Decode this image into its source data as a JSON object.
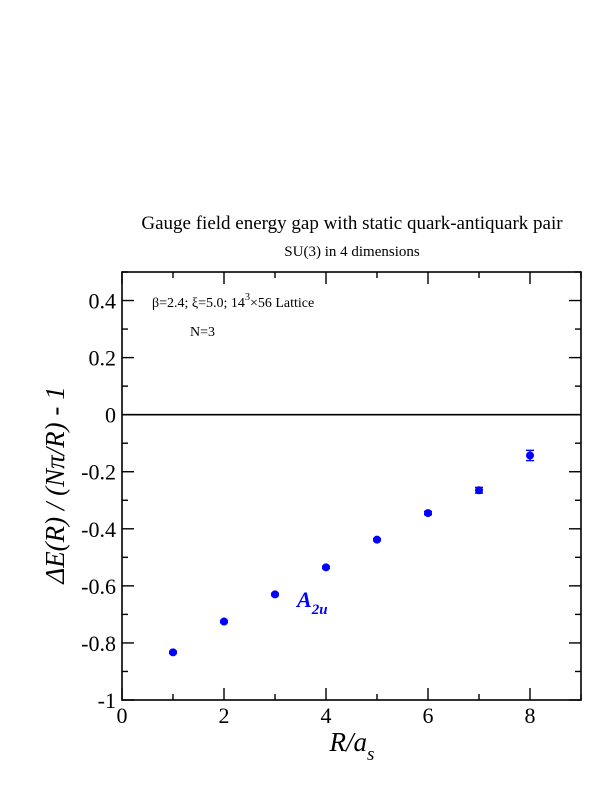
{
  "chart_data": {
    "type": "scatter",
    "title": "Gauge field energy gap with static quark-antiquark pair",
    "subtitle": "SU(3) in 4 dimensions",
    "xlabel": {
      "main": "R/a",
      "sub": "s"
    },
    "ylabel": "ΔE(R) / (Nπ/R) - 1",
    "xlim": [
      0,
      9
    ],
    "ylim": [
      -1,
      0.5
    ],
    "x_ticks": [
      0,
      2,
      4,
      6,
      8
    ],
    "y_ticks": [
      -1,
      -0.8,
      -0.6,
      -0.4,
      -0.2,
      0,
      0.2,
      0.4
    ],
    "y_tick_labels": [
      "-1",
      "-0.8",
      "-0.6",
      "-0.4",
      "-0.2",
      "0",
      "0.2",
      "0.4"
    ],
    "zero_line": true,
    "grid": false,
    "annotations": [
      {
        "parts": [
          "β=2.4;  ξ=5.0;  14",
          "3",
          "×56 Lattice"
        ]
      },
      {
        "text": "N=3"
      }
    ],
    "series": [
      {
        "name": "A2u",
        "label_main": "A",
        "label_sub": "2u",
        "color": "#0000ff",
        "x": [
          1,
          2,
          3,
          4,
          5,
          6,
          7,
          8
        ],
        "y": [
          -0.833,
          -0.725,
          -0.63,
          -0.535,
          -0.438,
          -0.345,
          -0.265,
          -0.143
        ],
        "yerr": [
          0.004,
          0.004,
          0.004,
          0.004,
          0.004,
          0.006,
          0.01,
          0.018
        ]
      }
    ]
  }
}
